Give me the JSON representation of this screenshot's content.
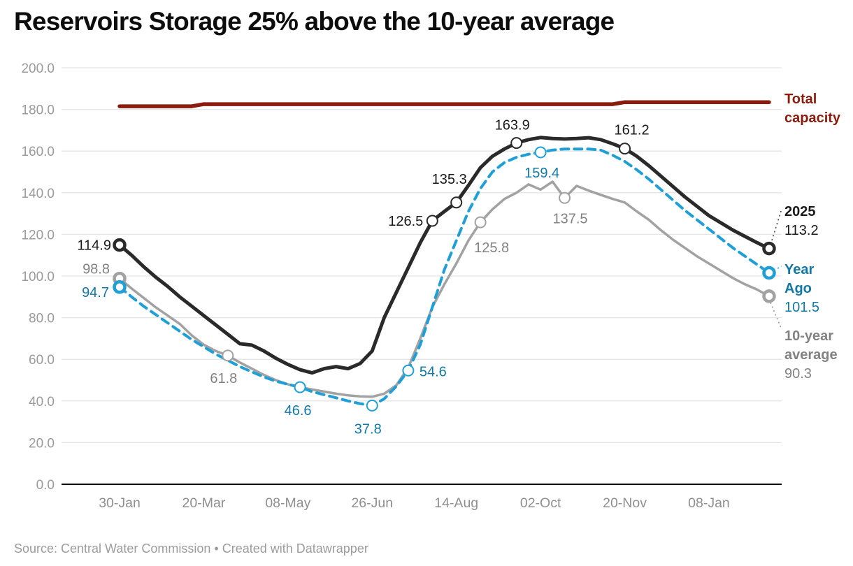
{
  "title": "Reservoirs Storage 25% above the 10-year average",
  "source_line": "Source: Central Water Commission • Created with Datawrapper",
  "chart_data": {
    "type": "line",
    "title": "Reservoirs Storage 25% above the 10-year average",
    "x_axis": {
      "tick_labels": [
        "30-Jan",
        "20-Mar",
        "08-May",
        "26-Jun",
        "14-Aug",
        "02-Oct",
        "20-Nov",
        "08-Jan"
      ],
      "tick_weeks": [
        0,
        7,
        14,
        21,
        28,
        35,
        42,
        49
      ],
      "weeks_total": 55
    },
    "y_axis": {
      "min": 0,
      "max": 200,
      "step": 20,
      "tick_labels": [
        "0.0",
        "20.0",
        "40.0",
        "60.0",
        "80.0",
        "100.0",
        "120.0",
        "140.0",
        "160.0",
        "180.0",
        "200.0"
      ]
    },
    "grid": true,
    "legend_position": "right-margin",
    "series": [
      {
        "name": "Total capacity",
        "color": "#8a1c0d",
        "label_color": "#8a1c0d",
        "style": "solid",
        "width": 5.5,
        "values": [
          181.5,
          181.5,
          181.5,
          181.5,
          181.5,
          181.5,
          181.5,
          182.5,
          182.5,
          182.5,
          182.5,
          182.5,
          182.5,
          182.5,
          182.5,
          182.5,
          182.5,
          182.5,
          182.5,
          182.5,
          182.5,
          182.5,
          182.5,
          182.5,
          182.5,
          182.5,
          182.5,
          182.5,
          182.5,
          182.5,
          182.5,
          182.5,
          182.5,
          182.5,
          182.5,
          182.5,
          182.5,
          182.5,
          182.5,
          182.5,
          182.5,
          182.5,
          183.5,
          183.5,
          183.5,
          183.5,
          183.5,
          183.5,
          183.5,
          183.5,
          183.5,
          183.5,
          183.5,
          183.5,
          183.5
        ],
        "markers": [],
        "point_labels": [],
        "end_label": {
          "lines": [
            "Total",
            "capacity"
          ],
          "value": ""
        }
      },
      {
        "name": "10-year average",
        "color": "#a2a2a2",
        "label_color": "#828282",
        "style": "solid",
        "width": 3.5,
        "values": [
          98.8,
          94,
          89.5,
          85,
          81,
          77,
          71.5,
          67,
          64,
          61.8,
          58.5,
          55.5,
          52.5,
          50,
          48,
          46.5,
          45.5,
          44.5,
          43.5,
          42.7,
          42.2,
          42,
          43.5,
          47.5,
          56,
          70,
          85,
          96,
          106,
          117,
          125.8,
          132,
          137,
          140,
          144,
          141.5,
          145.3,
          137.5,
          143.3,
          141,
          139,
          137,
          135.3,
          131,
          127,
          122,
          117.5,
          113.5,
          109.5,
          106,
          102.5,
          99,
          96,
          93.5,
          90.3
        ],
        "markers": [
          0,
          9,
          30,
          37,
          54
        ],
        "point_labels": [
          {
            "week": 0,
            "text": "98.8",
            "anchor": "end",
            "dx": -14,
            "dy": -7
          },
          {
            "week": 9,
            "text": "61.8",
            "anchor": "middle",
            "dx": -6,
            "dy": 39
          },
          {
            "week": 30,
            "text": "125.8",
            "anchor": "middle",
            "dx": 16,
            "dy": 43
          },
          {
            "week": 37,
            "text": "137.5",
            "anchor": "middle",
            "dx": 8,
            "dy": 36
          }
        ],
        "end_label": {
          "lines": [
            "10-year",
            "average"
          ],
          "value": "90.3"
        }
      },
      {
        "name": "Year Ago",
        "color": "#1f9fd6",
        "label_color": "#1278a6",
        "style": "dashed",
        "width": 4,
        "values": [
          94.7,
          90,
          85.5,
          81.5,
          77.5,
          73.5,
          69.5,
          66,
          62.5,
          59.5,
          56.5,
          54,
          51.5,
          49.5,
          48,
          46.6,
          44.5,
          43,
          41.5,
          40,
          38.7,
          37.8,
          41,
          47,
          54.6,
          67,
          85,
          103,
          117,
          131,
          142,
          150,
          154.5,
          157,
          158.5,
          159.4,
          160.5,
          161,
          161,
          161,
          160.5,
          158,
          155,
          151,
          146.5,
          141.5,
          136.5,
          131.5,
          127,
          122.5,
          118,
          113.5,
          109.5,
          105.5,
          101.5
        ],
        "markers": [
          0,
          15,
          21,
          24,
          35,
          54
        ],
        "point_labels": [
          {
            "week": 0,
            "text": "94.7",
            "anchor": "end",
            "dx": -15,
            "dy": 14
          },
          {
            "week": 15,
            "text": "46.6",
            "anchor": "middle",
            "dx": -3,
            "dy": 40
          },
          {
            "week": 21,
            "text": "37.8",
            "anchor": "middle",
            "dx": -6,
            "dy": 40
          },
          {
            "week": 24,
            "text": "54.6",
            "anchor": "start",
            "dx": 16,
            "dy": 8
          },
          {
            "week": 35,
            "text": "159.4",
            "anchor": "middle",
            "dx": 2,
            "dy": 36
          }
        ],
        "end_label": {
          "lines": [
            "Year",
            "Ago"
          ],
          "value": "101.5"
        }
      },
      {
        "name": "2025",
        "color": "#2a2a2a",
        "label_color": "#1a1a1a",
        "style": "solid",
        "width": 5,
        "values": [
          114.9,
          110,
          104.5,
          99.5,
          95,
          90,
          85.5,
          81,
          76.5,
          72,
          67.5,
          66.8,
          64,
          60.5,
          57.5,
          55,
          53.5,
          55.5,
          56.5,
          55.5,
          58,
          64,
          80,
          92,
          104,
          116,
          126.5,
          131,
          135.3,
          143.5,
          152,
          157.5,
          161,
          163.9,
          165.5,
          166.5,
          166,
          165.8,
          166,
          166.4,
          165.5,
          163.5,
          161.2,
          157.5,
          153,
          148,
          143,
          138,
          133.5,
          129,
          125.5,
          122,
          119,
          116,
          113.2
        ],
        "markers": [
          0,
          26,
          28,
          33,
          42,
          54
        ],
        "point_labels": [
          {
            "week": 0,
            "text": "114.9",
            "anchor": "end",
            "dx": -12,
            "dy": 7
          },
          {
            "week": 26,
            "text": "126.5",
            "anchor": "end",
            "dx": -13,
            "dy": 7
          },
          {
            "week": 28,
            "text": "135.3",
            "anchor": "middle",
            "dx": -10,
            "dy": -27
          },
          {
            "week": 33,
            "text": "163.9",
            "anchor": "middle",
            "dx": -6,
            "dy": -19
          },
          {
            "week": 42,
            "text": "161.2",
            "anchor": "middle",
            "dx": 10,
            "dy": -20
          }
        ],
        "end_label": {
          "lines": [
            "2025"
          ],
          "value": "113.2"
        }
      }
    ]
  }
}
